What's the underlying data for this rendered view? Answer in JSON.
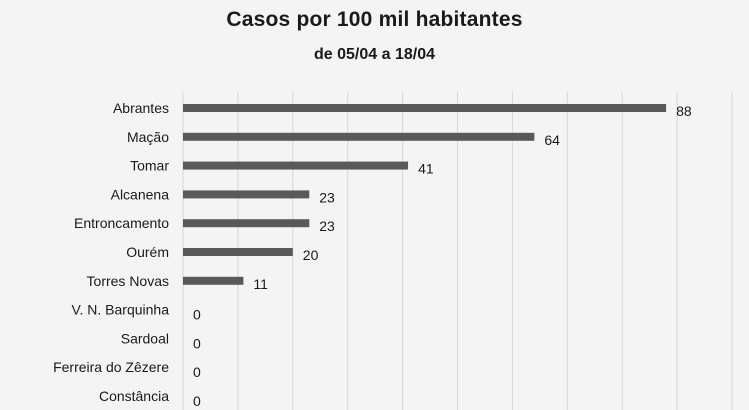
{
  "chart_data": {
    "type": "bar",
    "orientation": "horizontal",
    "title": "Casos por 100 mil habitantes",
    "subtitle": "de 05/04 a 18/04",
    "categories": [
      "Abrantes",
      "Mação",
      "Tomar",
      "Alcanena",
      "Entroncamento",
      "Ourém",
      "Torres Novas",
      "V. N. Barquinha",
      "Sardoal",
      "Ferreira do Zêzere",
      "Constância"
    ],
    "values": [
      88,
      64,
      41,
      23,
      23,
      20,
      11,
      0,
      0,
      0,
      0
    ],
    "xlim": [
      0,
      100
    ],
    "grid": true,
    "bar_color": "#595959",
    "data_labels": true
  }
}
